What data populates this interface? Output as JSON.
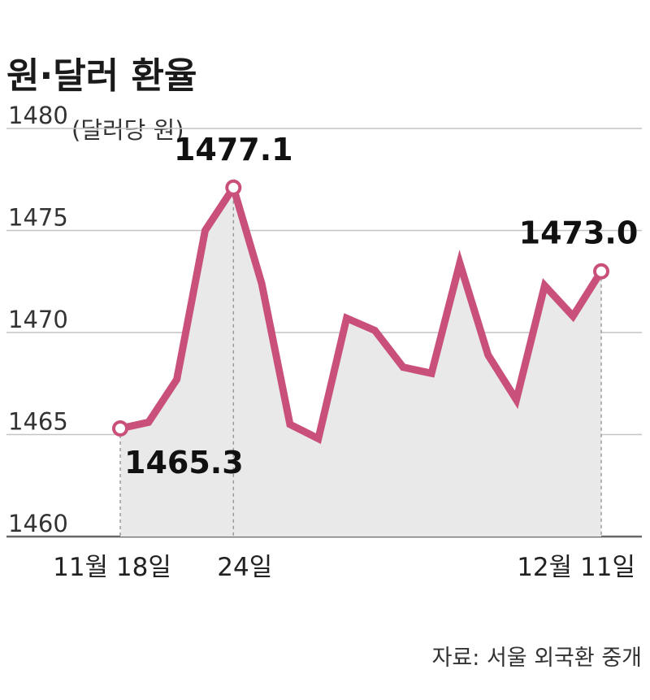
{
  "colors": {
    "line": "#c9507a",
    "area": "#e9e9e9",
    "grid": "#c4c4c4",
    "axis": "#666666",
    "marker_fill": "#ffffff",
    "text": "#1a1a1a"
  },
  "chart_data": {
    "type": "line",
    "title": "원·달러 환율",
    "unit_label": "(달러당 원)",
    "ylim": [
      1460,
      1480
    ],
    "yticks": [
      1460,
      1465,
      1470,
      1475,
      1480
    ],
    "grid": "horizontal",
    "area_fill": true,
    "x_tick_labels": [
      {
        "index": 0,
        "label": "11월 18일"
      },
      {
        "index": 4,
        "label": "24일"
      },
      {
        "index": 17,
        "label": "12월 11일"
      }
    ],
    "series": [
      {
        "values": [
          1465.3,
          1465.6,
          1467.7,
          1475.0,
          1477.1,
          1472.4,
          1465.5,
          1464.8,
          1470.7,
          1470.1,
          1468.3,
          1468.0,
          1473.4,
          1468.9,
          1466.7,
          1472.3,
          1470.8,
          1473.0
        ]
      }
    ],
    "annotations": [
      {
        "index": 0,
        "text": "1465.3",
        "position": "below"
      },
      {
        "index": 4,
        "text": "1477.1",
        "position": "above"
      },
      {
        "index": 17,
        "text": "1473.0",
        "position": "above"
      }
    ],
    "source": "자료: 서울 외국환 중개"
  }
}
